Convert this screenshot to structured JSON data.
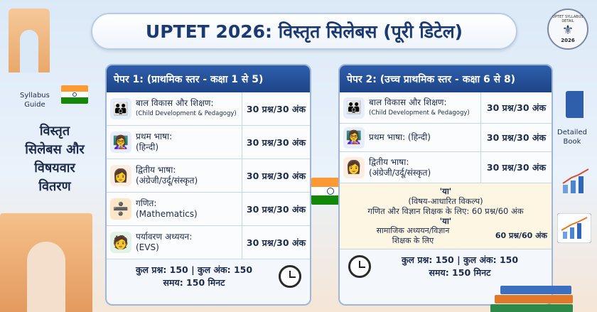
{
  "title": "UPTET 2026: विस्तृत सिलेबस (पूरी डिटेल)",
  "seal": {
    "ring_text": "UPTET SYLLABUS DETAIL",
    "year": "2026"
  },
  "left": {
    "guide_line1": "Syllabus",
    "guide_line2": "Guide",
    "heading": [
      "विस्तृत",
      "सिलेबस और",
      "विषयवार",
      "वितरण"
    ]
  },
  "right": {
    "label_line1": "Detailed",
    "label_line2": "Book"
  },
  "paper1": {
    "header": "पेपर 1: (प्राथमिक स्तर - कक्षा 1 से 5)",
    "rows": [
      {
        "hi": "बाल विकास और शिक्षण:",
        "en": "(Child Development & Pedagogy)",
        "marks": "30 प्रश्न/30 अंक",
        "icon": "people-icon"
      },
      {
        "hi": "प्रथम भाषा:",
        "en": "(हिन्दी)",
        "marks": "30 प्रश्न/30 अंक",
        "icon": "teacher-icon"
      },
      {
        "hi": "द्वितीय भाषा:",
        "en": "(अंग्रेजी/उर्दू/संस्कृत)",
        "marks": "30 प्रश्न/30 अंक",
        "icon": "woman-icon"
      },
      {
        "hi": "गणित:",
        "en": "(Mathematics)",
        "marks": "30 प्रश्न/30 अंक",
        "icon": "calculator-icon"
      },
      {
        "hi": "पर्यावरण अध्ययन:",
        "en": "(EVS)",
        "marks": "30 प्रश्न/30 अंक",
        "icon": "student-icon"
      }
    ],
    "total": "कुल प्रश्न: 150 | कुल अंक: 150",
    "time": "समय: 150 मिनट"
  },
  "paper2": {
    "header": "पेपर 2: (उच्च प्राथमिक स्तर - कक्षा 6 से 8)",
    "rows": [
      {
        "hi": "बाल विकास और शिक्षण:",
        "en": "(Child Development & Pedagogy)",
        "marks": "30 प्रश्न/30 अंक",
        "icon": "people-icon"
      },
      {
        "hi": "प्रथम भाषा: (हिन्दी)",
        "en": "",
        "marks": "30 प्रश्न/30 अंक",
        "icon": "teacher-icon"
      },
      {
        "hi": "द्वितीय भाषा:",
        "en": "(अंग्रेजी/उर्दू/संस्कृत)",
        "marks": "30 प्रश्न/30 अंक",
        "icon": "woman-icon"
      }
    ],
    "options": {
      "or1": "'या'",
      "choice": "(विषय-आधारित विकल्प)",
      "math_sci": "गणित और विज्ञान शिक्षक के लिए: 60 प्रश्न/60 अंक",
      "or2": "'या'",
      "social_l1": "सामाजिक अध्ययन/विज्ञान",
      "social_l2": "शिक्षक के लिए",
      "social_marks": "60 प्रश्न/60 अंक"
    },
    "total": "कुल प्रश्न: 150 | कुल अंक: 150",
    "time": "समय: 150 मिनट"
  }
}
